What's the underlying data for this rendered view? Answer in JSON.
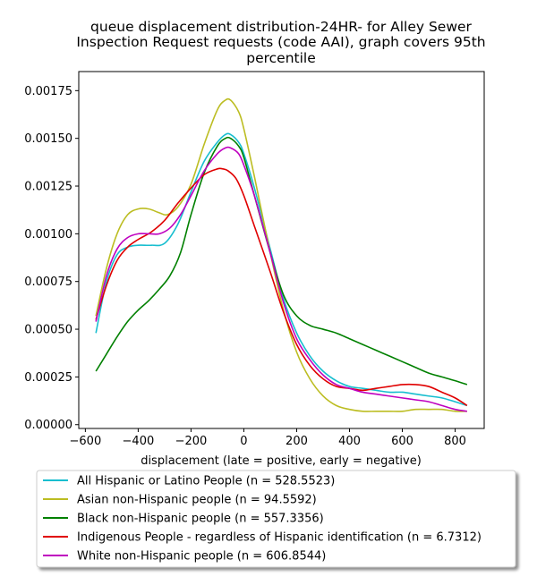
{
  "chart_data": {
    "type": "line",
    "title_lines": [
      "queue displacement distribution-24HR-  for Alley Sewer",
      "Inspection Request  requests (code AAI), graph covers 95th",
      "percentile"
    ],
    "xlabel": "displacement (late = positive, early = negative)",
    "ylabel": "",
    "xlim": [
      -625,
      910
    ],
    "ylim": [
      -2e-05,
      0.00185
    ],
    "xticks": [
      -600,
      -400,
      -200,
      0,
      200,
      400,
      600,
      800
    ],
    "xtick_labels": [
      "−600",
      "−400",
      "−200",
      "0",
      "200",
      "400",
      "600",
      "800"
    ],
    "yticks": [
      0,
      0.00025,
      0.0005,
      0.00075,
      0.001,
      0.00125,
      0.0015,
      0.00175
    ],
    "ytick_labels": [
      "0.00000",
      "0.00025",
      "0.00050",
      "0.00075",
      "0.00100",
      "0.00125",
      "0.00150",
      "0.00175"
    ],
    "grid": false,
    "legend_position": "below",
    "series": [
      {
        "name": "All Hispanic or Latino People (n = 528.5523)",
        "color": "#17becf",
        "points": [
          [
            -560,
            0.00048
          ],
          [
            -520,
            0.00075
          ],
          [
            -480,
            0.00089
          ],
          [
            -440,
            0.00093
          ],
          [
            -400,
            0.00094
          ],
          [
            -350,
            0.00094
          ],
          [
            -300,
            0.00095
          ],
          [
            -250,
            0.00105
          ],
          [
            -200,
            0.00122
          ],
          [
            -150,
            0.00138
          ],
          [
            -100,
            0.00148
          ],
          [
            -70,
            0.00152
          ],
          [
            -50,
            0.00152
          ],
          [
            -20,
            0.00148
          ],
          [
            0,
            0.00142
          ],
          [
            40,
            0.00124
          ],
          [
            100,
            0.00092
          ],
          [
            150,
            0.00066
          ],
          [
            200,
            0.00048
          ],
          [
            250,
            0.00036
          ],
          [
            300,
            0.00028
          ],
          [
            350,
            0.00023
          ],
          [
            400,
            0.0002
          ],
          [
            450,
            0.00019
          ],
          [
            500,
            0.00018
          ],
          [
            550,
            0.00017
          ],
          [
            600,
            0.00017
          ],
          [
            650,
            0.00016
          ],
          [
            700,
            0.00015
          ],
          [
            750,
            0.00014
          ],
          [
            800,
            0.00012
          ],
          [
            845,
            0.0001
          ]
        ]
      },
      {
        "name": "Asian non-Hispanic people (n = 94.5592)",
        "color": "#bcbd22",
        "points": [
          [
            -560,
            0.00057
          ],
          [
            -520,
            0.00082
          ],
          [
            -480,
            0.001
          ],
          [
            -440,
            0.0011
          ],
          [
            -400,
            0.00113
          ],
          [
            -360,
            0.00113
          ],
          [
            -320,
            0.00111
          ],
          [
            -290,
            0.0011
          ],
          [
            -250,
            0.00114
          ],
          [
            -200,
            0.00126
          ],
          [
            -150,
            0.00147
          ],
          [
            -100,
            0.00165
          ],
          [
            -70,
            0.0017
          ],
          [
            -50,
            0.0017
          ],
          [
            -20,
            0.00164
          ],
          [
            0,
            0.00155
          ],
          [
            40,
            0.0013
          ],
          [
            100,
            0.0009
          ],
          [
            150,
            0.0006
          ],
          [
            200,
            0.00038
          ],
          [
            250,
            0.00024
          ],
          [
            300,
            0.00015
          ],
          [
            350,
            0.0001
          ],
          [
            400,
            8e-05
          ],
          [
            450,
            7e-05
          ],
          [
            500,
            7e-05
          ],
          [
            550,
            7e-05
          ],
          [
            600,
            7e-05
          ],
          [
            650,
            8e-05
          ],
          [
            700,
            8e-05
          ],
          [
            750,
            8e-05
          ],
          [
            800,
            7e-05
          ],
          [
            845,
            7e-05
          ]
        ]
      },
      {
        "name": "Black non-Hispanic people (n = 557.3356)",
        "color": "#008000",
        "points": [
          [
            -560,
            0.00028
          ],
          [
            -520,
            0.00037
          ],
          [
            -480,
            0.00046
          ],
          [
            -440,
            0.00054
          ],
          [
            -400,
            0.0006
          ],
          [
            -360,
            0.00065
          ],
          [
            -320,
            0.00071
          ],
          [
            -280,
            0.00078
          ],
          [
            -240,
            0.0009
          ],
          [
            -200,
            0.0011
          ],
          [
            -150,
            0.00132
          ],
          [
            -100,
            0.00146
          ],
          [
            -70,
            0.0015
          ],
          [
            -50,
            0.0015
          ],
          [
            -20,
            0.00146
          ],
          [
            0,
            0.0014
          ],
          [
            40,
            0.0012
          ],
          [
            100,
            0.0009
          ],
          [
            150,
            0.00068
          ],
          [
            200,
            0.00057
          ],
          [
            250,
            0.00052
          ],
          [
            300,
            0.0005
          ],
          [
            350,
            0.00048
          ],
          [
            400,
            0.00045
          ],
          [
            450,
            0.00042
          ],
          [
            500,
            0.00039
          ],
          [
            550,
            0.00036
          ],
          [
            600,
            0.00033
          ],
          [
            650,
            0.0003
          ],
          [
            700,
            0.00027
          ],
          [
            750,
            0.00025
          ],
          [
            800,
            0.00023
          ],
          [
            845,
            0.00021
          ]
        ]
      },
      {
        "name": "Indigenous People - regardless of Hispanic identification (n = 6.7312)",
        "color": "#e00000",
        "points": [
          [
            -560,
            0.00055
          ],
          [
            -520,
            0.00073
          ],
          [
            -480,
            0.00086
          ],
          [
            -440,
            0.00093
          ],
          [
            -400,
            0.00097
          ],
          [
            -350,
            0.00101
          ],
          [
            -300,
            0.00107
          ],
          [
            -250,
            0.00116
          ],
          [
            -200,
            0.00124
          ],
          [
            -150,
            0.00131
          ],
          [
            -100,
            0.00134
          ],
          [
            -80,
            0.00134
          ],
          [
            -60,
            0.00133
          ],
          [
            -30,
            0.00129
          ],
          [
            0,
            0.0012
          ],
          [
            40,
            0.00104
          ],
          [
            100,
            0.0008
          ],
          [
            150,
            0.00059
          ],
          [
            200,
            0.00042
          ],
          [
            250,
            0.00031
          ],
          [
            300,
            0.00024
          ],
          [
            350,
            0.0002
          ],
          [
            400,
            0.00019
          ],
          [
            450,
            0.00018
          ],
          [
            500,
            0.00019
          ],
          [
            550,
            0.0002
          ],
          [
            600,
            0.00021
          ],
          [
            650,
            0.00021
          ],
          [
            700,
            0.0002
          ],
          [
            750,
            0.00017
          ],
          [
            800,
            0.00014
          ],
          [
            845,
            0.0001
          ]
        ]
      },
      {
        "name": "White non-Hispanic people (n = 606.8544)",
        "color": "#bf00bf",
        "points": [
          [
            -560,
            0.00054
          ],
          [
            -520,
            0.00078
          ],
          [
            -480,
            0.00092
          ],
          [
            -440,
            0.00098
          ],
          [
            -400,
            0.001
          ],
          [
            -360,
            0.001
          ],
          [
            -320,
            0.001
          ],
          [
            -280,
            0.00103
          ],
          [
            -240,
            0.0011
          ],
          [
            -200,
            0.0012
          ],
          [
            -150,
            0.00133
          ],
          [
            -100,
            0.00142
          ],
          [
            -70,
            0.00145
          ],
          [
            -50,
            0.00145
          ],
          [
            -20,
            0.00142
          ],
          [
            0,
            0.00136
          ],
          [
            40,
            0.0012
          ],
          [
            100,
            0.0009
          ],
          [
            150,
            0.00064
          ],
          [
            200,
            0.00045
          ],
          [
            250,
            0.00034
          ],
          [
            300,
            0.00026
          ],
          [
            350,
            0.00021
          ],
          [
            400,
            0.00019
          ],
          [
            450,
            0.00017
          ],
          [
            500,
            0.00016
          ],
          [
            550,
            0.00015
          ],
          [
            600,
            0.00014
          ],
          [
            650,
            0.00013
          ],
          [
            700,
            0.00012
          ],
          [
            750,
            0.0001
          ],
          [
            800,
            8e-05
          ],
          [
            845,
            7e-05
          ]
        ]
      }
    ]
  }
}
